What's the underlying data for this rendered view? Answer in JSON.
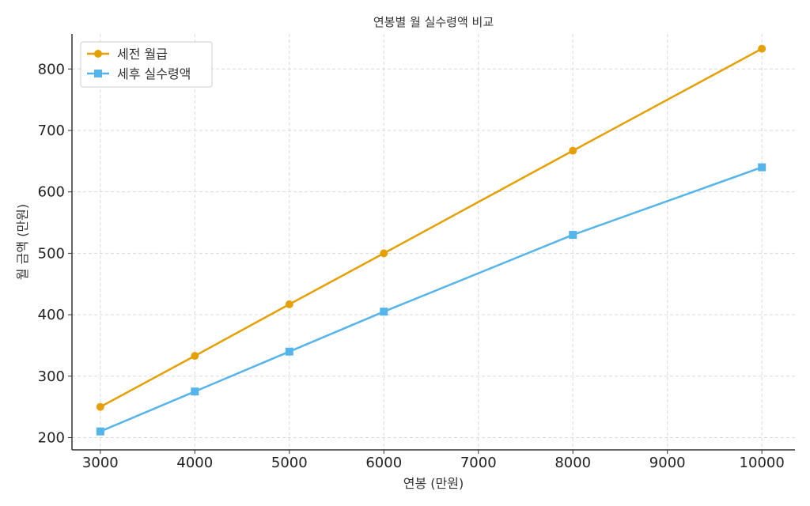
{
  "chart_data": {
    "type": "line",
    "title": "연봉별 월 실수령액 비교",
    "xlabel": "연봉 (만원)",
    "ylabel": "월 금액 (만원)",
    "x": [
      3000,
      4000,
      5000,
      6000,
      8000,
      10000
    ],
    "series": [
      {
        "name": "세전 월급",
        "values": [
          250,
          333,
          417,
          500,
          667,
          833
        ],
        "color": "#E3A008",
        "marker": "circle"
      },
      {
        "name": "세후 실수령액",
        "values": [
          210,
          275,
          340,
          405,
          530,
          640
        ],
        "color": "#56B4E9",
        "marker": "square"
      }
    ],
    "xlim": [
      2700,
      10350
    ],
    "ylim": [
      180,
      857
    ],
    "xticks": [
      3000,
      4000,
      5000,
      6000,
      7000,
      8000,
      9000,
      10000
    ],
    "yticks": [
      200,
      300,
      400,
      500,
      600,
      700,
      800
    ],
    "grid": true,
    "legend_position": "top-left"
  }
}
